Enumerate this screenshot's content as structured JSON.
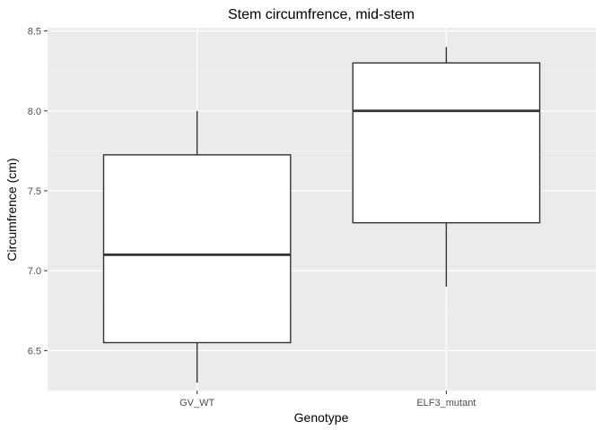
{
  "chart_data": {
    "type": "boxplot",
    "title": "Stem circumfrence, mid-stem",
    "xlabel": "Genotype",
    "ylabel": "Circumfrence (cm)",
    "categories": [
      "GV_WT",
      "ELF3_mutant"
    ],
    "boxes": [
      {
        "category": "GV_WT",
        "whisker_low": 6.3,
        "q1": 6.55,
        "median": 7.1,
        "q3": 7.725,
        "whisker_high": 8.0
      },
      {
        "category": "ELF3_mutant",
        "whisker_low": 6.9,
        "q1": 7.3,
        "median": 8.0,
        "q3": 8.3,
        "whisker_high": 8.4
      }
    ],
    "ylim": [
      6.25,
      8.52
    ],
    "y_ticks": [
      6.5,
      7.0,
      7.5,
      8.0,
      8.5
    ],
    "y_tick_labels": [
      "6.5",
      "7.0",
      "7.5",
      "8.0",
      "8.5"
    ],
    "grid": true,
    "colors": {
      "panel_background": "#ebebeb",
      "grid_major": "#ffffff",
      "box_fill": "#ffffff",
      "box_stroke": "#333333"
    }
  }
}
